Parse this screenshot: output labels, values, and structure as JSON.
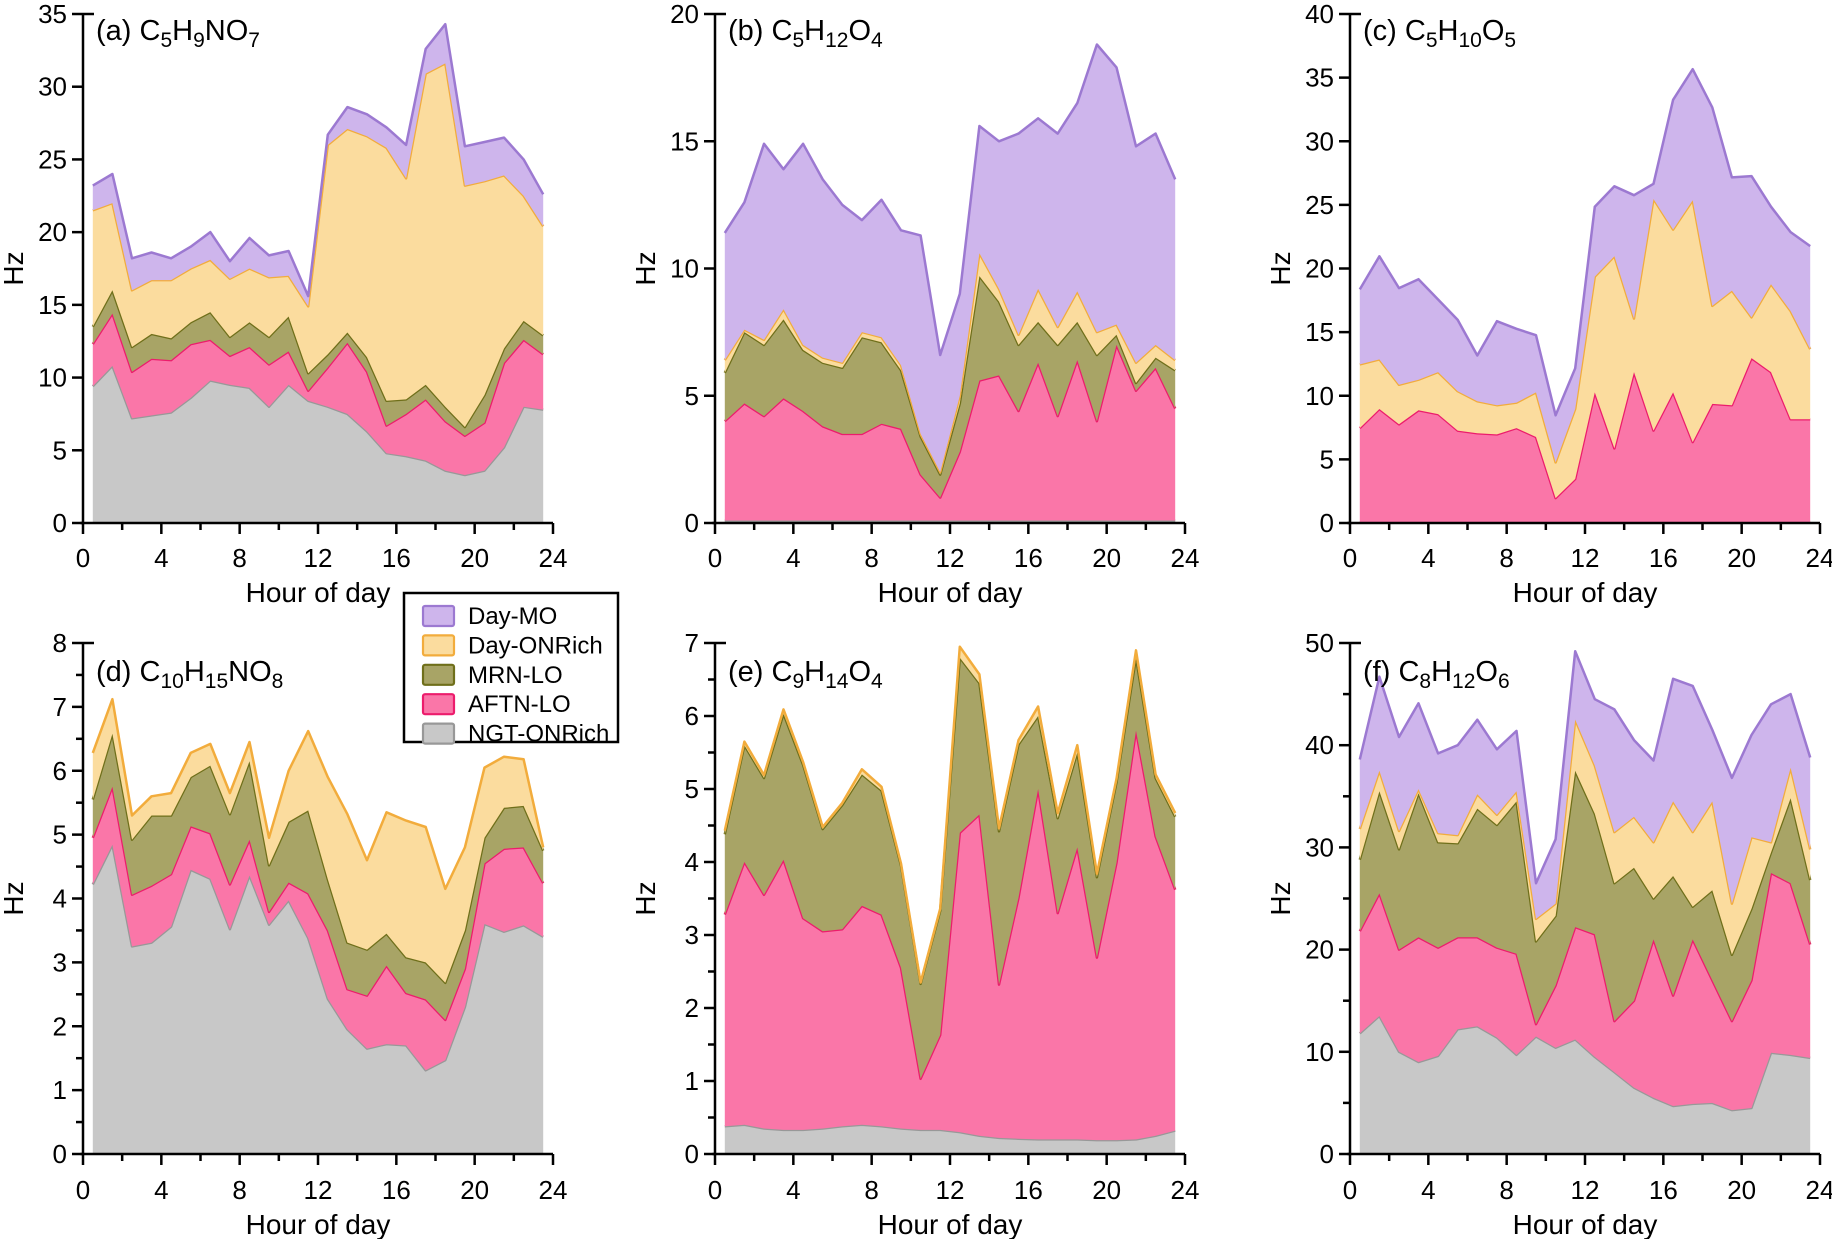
{
  "figure": {
    "y_axis_label": "Hz",
    "x_axis_label": "Hour of day",
    "background": "#ffffff"
  },
  "legend": {
    "items": [
      "Day-MO",
      "Day-ONRich",
      "MRN-LO",
      "AFTN-LO",
      "NGT-ONRich"
    ]
  },
  "colors": {
    "Day-MO": {
      "fill": "#CEB5EC",
      "stroke": "#9C79D1"
    },
    "Day-ONRich": {
      "fill": "#FBDC9E",
      "stroke": "#F2AC3C"
    },
    "MRN-LO": {
      "fill": "#A8A466",
      "stroke": "#6F6F1A"
    },
    "AFTN-LO": {
      "fill": "#FA76A8",
      "stroke": "#EC1C6C"
    },
    "NGT-ONRich": {
      "fill": "#C8C8C8",
      "stroke": "#989898"
    }
  },
  "chart_data": {
    "type": "area",
    "stacked": true,
    "stack_order_bottom_to_top": [
      "NGT-ONRich",
      "AFTN-LO",
      "MRN-LO",
      "Day-ONRich",
      "Day-MO"
    ],
    "xlabel": "Hour of day",
    "ylabel": "Hz",
    "xlim": [
      0,
      24
    ],
    "xtick_step": 4,
    "x_minor_step": 2,
    "x_hours": [
      0.5,
      1.5,
      2.5,
      3.5,
      4.5,
      5.5,
      6.5,
      7.5,
      8.5,
      9.5,
      10.5,
      11.5,
      12.5,
      13.5,
      14.5,
      15.5,
      16.5,
      17.5,
      18.5,
      19.5,
      20.5,
      21.5,
      22.5,
      23.5
    ],
    "panels": [
      {
        "label": "(a)",
        "formula": "C5H9NO7",
        "ylim": [
          0,
          35
        ],
        "ytick_step": 5,
        "y_minor_step": null,
        "series": [
          {
            "name": "NGT-ONRich",
            "values": [
              9.4,
              10.8,
              7.2,
              7.4,
              7.6,
              8.6,
              9.8,
              9.5,
              9.3,
              8.0,
              9.5,
              8.4,
              8.0,
              7.5,
              6.3,
              4.8,
              4.6,
              4.3,
              3.6,
              3.3,
              3.6,
              5.2,
              8.0,
              7.8
            ]
          },
          {
            "name": "AFTN-LO",
            "values": [
              2.9,
              3.6,
              3.2,
              3.9,
              3.6,
              3.7,
              2.8,
              2.0,
              2.8,
              2.9,
              2.3,
              0.7,
              2.7,
              4.9,
              4.1,
              1.9,
              2.9,
              4.2,
              3.4,
              2.7,
              3.3,
              5.8,
              4.6,
              3.8
            ]
          },
          {
            "name": "MRN-LO",
            "values": [
              1.2,
              1.6,
              1.7,
              1.7,
              1.5,
              1.5,
              1.9,
              1.3,
              1.7,
              1.9,
              2.4,
              1.2,
              0.9,
              0.7,
              1.0,
              1.7,
              1.0,
              1.0,
              1.0,
              0.6,
              1.9,
              1.0,
              1.3,
              1.3
            ]
          },
          {
            "name": "Day-ONRich",
            "values": [
              8.0,
              6.0,
              3.9,
              3.7,
              4.0,
              3.7,
              3.6,
              4.0,
              3.7,
              4.1,
              2.8,
              4.6,
              14.4,
              14.0,
              15.2,
              17.4,
              15.2,
              21.4,
              23.6,
              16.6,
              14.7,
              11.9,
              8.6,
              7.5
            ]
          },
          {
            "name": "Day-MO",
            "values": [
              1.7,
              2.0,
              2.2,
              1.9,
              1.5,
              1.5,
              1.9,
              1.2,
              2.1,
              1.5,
              1.7,
              0.7,
              0.7,
              1.5,
              1.5,
              1.4,
              2.3,
              1.7,
              2.7,
              2.7,
              2.7,
              2.6,
              2.5,
              2.2
            ]
          }
        ]
      },
      {
        "label": "(b)",
        "formula": "C5H12O4",
        "ylim": [
          0,
          20
        ],
        "ytick_step": 5,
        "y_minor_step": null,
        "series": [
          {
            "name": "NGT-ONRich",
            "values": [
              0.1,
              0.1,
              0.1,
              0.1,
              0.1,
              0.1,
              0.1,
              0.1,
              0.1,
              0.1,
              0.1,
              0.1,
              0.1,
              0.1,
              0.1,
              0.1,
              0.1,
              0.1,
              0.1,
              0.1,
              0.1,
              0.1,
              0.1,
              0.1
            ]
          },
          {
            "name": "AFTN-LO",
            "values": [
              3.9,
              4.6,
              4.1,
              4.8,
              4.3,
              3.7,
              3.4,
              3.4,
              3.8,
              3.6,
              1.8,
              0.9,
              2.7,
              5.5,
              5.7,
              4.3,
              6.2,
              4.1,
              6.3,
              3.9,
              6.9,
              5.1,
              6.0,
              4.4
            ]
          },
          {
            "name": "MRN-LO",
            "values": [
              1.9,
              2.8,
              2.8,
              3.1,
              2.4,
              2.5,
              2.6,
              3.8,
              3.2,
              2.3,
              1.5,
              0.9,
              1.9,
              4.1,
              2.9,
              2.6,
              1.6,
              2.8,
              1.5,
              2.6,
              0.4,
              0.3,
              0.4,
              1.5
            ]
          },
          {
            "name": "Day-ONRich",
            "values": [
              0.5,
              0.1,
              0.2,
              0.4,
              0.2,
              0.2,
              0.2,
              0.2,
              0.2,
              0.2,
              0.1,
              0.1,
              0.3,
              0.9,
              0.5,
              0.4,
              1.3,
              0.7,
              1.2,
              0.9,
              0.4,
              0.8,
              0.5,
              0.4
            ]
          },
          {
            "name": "Day-MO",
            "values": [
              5.0,
              5.0,
              7.7,
              5.5,
              7.9,
              7.0,
              6.2,
              4.4,
              5.4,
              5.3,
              7.8,
              4.6,
              4.0,
              5.0,
              5.8,
              7.9,
              6.7,
              7.6,
              7.4,
              11.3,
              10.1,
              8.5,
              8.3,
              7.1
            ]
          }
        ]
      },
      {
        "label": "(c)",
        "formula": "C5H10O5",
        "ylim": [
          0,
          40
        ],
        "ytick_step": 5,
        "y_minor_step": null,
        "series": [
          {
            "name": "NGT-ONRich",
            "values": [
              0.06,
              0.06,
              0.06,
              0.06,
              0.06,
              0.06,
              0.06,
              0.06,
              0.06,
              0.06,
              0.06,
              0.06,
              0.06,
              0.06,
              0.06,
              0.06,
              0.06,
              0.06,
              0.06,
              0.06,
              0.06,
              0.06,
              0.06,
              0.06
            ]
          },
          {
            "name": "AFTN-LO",
            "values": [
              7.4,
              8.9,
              7.7,
              8.8,
              8.5,
              7.2,
              7.0,
              6.9,
              7.4,
              6.7,
              1.9,
              3.4,
              10.2,
              5.8,
              11.8,
              7.2,
              10.2,
              6.3,
              9.3,
              9.2,
              12.9,
              11.8,
              8.1,
              8.1
            ]
          },
          {
            "name": "MRN-LO",
            "values": [
              0,
              0,
              0,
              0,
              0,
              0,
              0,
              0,
              0,
              0,
              0,
              0,
              0,
              0,
              0,
              0,
              0,
              0,
              0,
              0,
              0,
              0,
              0,
              0
            ]
          },
          {
            "name": "Day-ONRich",
            "values": [
              5.0,
              3.9,
              3.1,
              2.4,
              3.3,
              3.1,
              2.5,
              2.3,
              2.0,
              3.5,
              2.8,
              5.5,
              9.1,
              15.1,
              4.2,
              18.2,
              12.8,
              19.0,
              7.7,
              9.0,
              3.2,
              6.9,
              8.5,
              5.5
            ]
          },
          {
            "name": "Day-MO",
            "values": [
              5.9,
              8.1,
              7.6,
              7.9,
              5.7,
              5.6,
              3.6,
              6.6,
              5.8,
              4.5,
              3.7,
              3.2,
              5.5,
              5.5,
              9.7,
              1.2,
              10.2,
              10.3,
              15.6,
              8.9,
              11.1,
              6.1,
              6.2,
              8.1
            ]
          }
        ]
      },
      {
        "label": "(d)",
        "formula": "C10H15NO8",
        "ylim": [
          0,
          8
        ],
        "ytick_step": 1,
        "y_minor_step": 0.5,
        "series": [
          {
            "name": "NGT-ONRich",
            "values": [
              4.22,
              4.84,
              3.25,
              3.31,
              3.56,
              4.45,
              4.31,
              3.52,
              4.36,
              3.59,
              3.97,
              3.38,
              2.43,
              1.95,
              1.65,
              1.72,
              1.7,
              1.31,
              1.47,
              2.3,
              3.6,
              3.48,
              3.58,
              3.4
            ]
          },
          {
            "name": "AFTN-LO",
            "values": [
              0.73,
              0.91,
              0.81,
              0.89,
              0.82,
              0.68,
              0.71,
              0.7,
              0.56,
              0.2,
              0.28,
              0.7,
              1.07,
              0.63,
              0.83,
              1.23,
              0.82,
              1.11,
              0.63,
              0.6,
              0.95,
              1.3,
              1.22,
              0.84
            ]
          },
          {
            "name": "MRN-LO",
            "values": [
              0.6,
              0.83,
              0.86,
              1.1,
              0.92,
              0.77,
              1.06,
              1.1,
              1.23,
              0.73,
              0.95,
              1.3,
              0.8,
              0.73,
              0.72,
              0.5,
              0.56,
              0.58,
              0.58,
              0.6,
              0.4,
              0.64,
              0.65,
              0.51
            ]
          },
          {
            "name": "Day-ONRich",
            "values": [
              0.73,
              0.54,
              0.38,
              0.3,
              0.35,
              0.38,
              0.34,
              0.33,
              0.3,
              0.43,
              0.8,
              1.24,
              1.6,
              2.01,
              1.4,
              1.9,
              2.14,
              2.12,
              1.47,
              1.3,
              1.1,
              0.8,
              0.73,
              0.05
            ]
          },
          {
            "name": "Day-MO",
            "values": [
              0,
              0,
              0,
              0,
              0,
              0,
              0,
              0,
              0,
              0,
              0,
              0,
              0,
              0,
              0,
              0,
              0,
              0,
              0,
              0,
              0,
              0,
              0,
              0
            ]
          }
        ]
      },
      {
        "label": "(e)",
        "formula": "C9H14O4",
        "ylim": [
          0,
          7
        ],
        "ytick_step": 1,
        "y_minor_step": 0.5,
        "series": [
          {
            "name": "NGT-ONRich",
            "values": [
              0.38,
              0.4,
              0.35,
              0.33,
              0.33,
              0.35,
              0.38,
              0.4,
              0.38,
              0.35,
              0.33,
              0.33,
              0.3,
              0.25,
              0.22,
              0.21,
              0.2,
              0.2,
              0.2,
              0.19,
              0.19,
              0.2,
              0.25,
              0.32
            ]
          },
          {
            "name": "AFTN-LO",
            "values": [
              2.9,
              3.6,
              3.2,
              3.7,
              2.9,
              2.7,
              2.7,
              3.0,
              2.9,
              2.2,
              0.7,
              1.3,
              4.1,
              4.4,
              2.1,
              3.3,
              4.8,
              3.1,
              4.0,
              2.5,
              3.8,
              5.6,
              4.1,
              3.3
            ]
          },
          {
            "name": "MRN-LO",
            "values": [
              1.1,
              1.6,
              1.6,
              2.0,
              2.1,
              1.4,
              1.7,
              1.8,
              1.7,
              1.4,
              1.3,
              1.7,
              2.4,
              1.8,
              2.1,
              2.1,
              1.0,
              1.3,
              1.3,
              1.1,
              1.1,
              1.0,
              0.8,
              1.0
            ]
          },
          {
            "name": "Day-ONRich",
            "values": [
              0.05,
              0.05,
              0.04,
              0.06,
              0.04,
              0.03,
              0.03,
              0.07,
              0.05,
              0.03,
              0.02,
              0.03,
              0.15,
              0.12,
              0.04,
              0.06,
              0.13,
              0.07,
              0.1,
              0.05,
              0.05,
              0.1,
              0.05,
              0.05
            ]
          },
          {
            "name": "Day-MO",
            "values": [
              0,
              0,
              0,
              0,
              0,
              0,
              0,
              0,
              0,
              0,
              0,
              0,
              0,
              0,
              0,
              0,
              0,
              0,
              0,
              0,
              0,
              0,
              0,
              0
            ]
          }
        ]
      },
      {
        "label": "(f)",
        "formula": "C8H12O6",
        "ylim": [
          0,
          50
        ],
        "ytick_step": 10,
        "y_minor_step": 5,
        "series": [
          {
            "name": "NGT-ONRich",
            "values": [
              11.8,
              13.5,
              10.0,
              9.0,
              9.6,
              12.2,
              12.5,
              11.4,
              9.7,
              11.5,
              10.4,
              11.2,
              9.5,
              8.0,
              6.5,
              5.5,
              4.7,
              4.9,
              5.0,
              4.3,
              4.5,
              9.9,
              9.7,
              9.4
            ]
          },
          {
            "name": "AFTN-LO",
            "values": [
              10.0,
              12.0,
              10.0,
              12.2,
              10.6,
              9.0,
              8.7,
              8.8,
              9.9,
              1.2,
              6.1,
              11.0,
              12.0,
              5.0,
              8.5,
              15.5,
              10.8,
              16.1,
              12.0,
              8.7,
              12.5,
              17.6,
              16.8,
              11.1
            ]
          },
          {
            "name": "MRN-LO",
            "values": [
              7.0,
              10.0,
              9.8,
              14.1,
              10.3,
              9.2,
              12.6,
              12.0,
              14.9,
              8.1,
              6.8,
              15.3,
              11.8,
              13.5,
              13.0,
              4.0,
              11.7,
              3.2,
              8.8,
              6.5,
              7.0,
              2.0,
              8.3,
              6.3
            ]
          },
          {
            "name": "Day-ONRich",
            "values": [
              3.0,
              2.0,
              1.8,
              0.4,
              0.9,
              0.8,
              1.4,
              1.0,
              1.0,
              2.2,
              1.2,
              5.0,
              4.7,
              5.0,
              5.0,
              5.5,
              7.3,
              7.3,
              8.7,
              5.0,
              7.0,
              1.0,
              3.0,
              3.0
            ]
          },
          {
            "name": "Day-MO",
            "values": [
              6.8,
              9.2,
              9.2,
              8.4,
              7.8,
              8.8,
              7.3,
              6.4,
              5.9,
              3.5,
              6.3,
              6.7,
              6.5,
              12.0,
              7.5,
              8.0,
              12.0,
              14.3,
              7.0,
              12.3,
              10.0,
              13.5,
              7.2,
              9.0
            ]
          }
        ]
      }
    ]
  }
}
